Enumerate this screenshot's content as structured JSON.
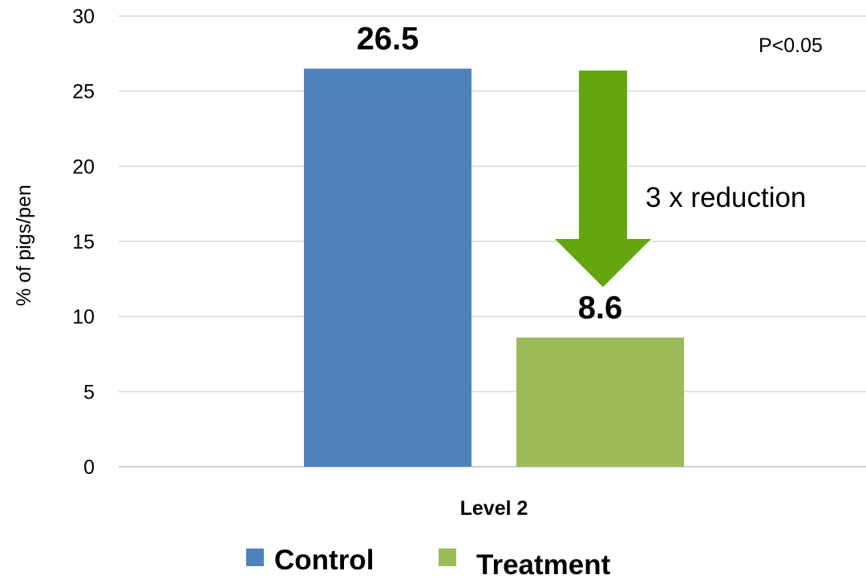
{
  "chart_data": {
    "type": "bar",
    "categories": [
      "Level 2"
    ],
    "series": [
      {
        "name": "Control",
        "values": [
          26.5
        ],
        "color": "#4F81BD"
      },
      {
        "name": "Treatment",
        "values": [
          8.6
        ],
        "color": "#9BBB59"
      }
    ],
    "data_labels": [
      "26.5",
      "8.6"
    ],
    "ylabel": "% of pigs/pen",
    "xlabel": "",
    "ylim": [
      0,
      30
    ],
    "yticks": [
      0,
      5,
      10,
      15,
      20,
      25,
      30
    ],
    "grid": true,
    "legend_position": "bottom",
    "annotations": {
      "p_value": "P<0.05",
      "reduction": "3 x reduction",
      "arrow_color": "#63A60E"
    }
  }
}
